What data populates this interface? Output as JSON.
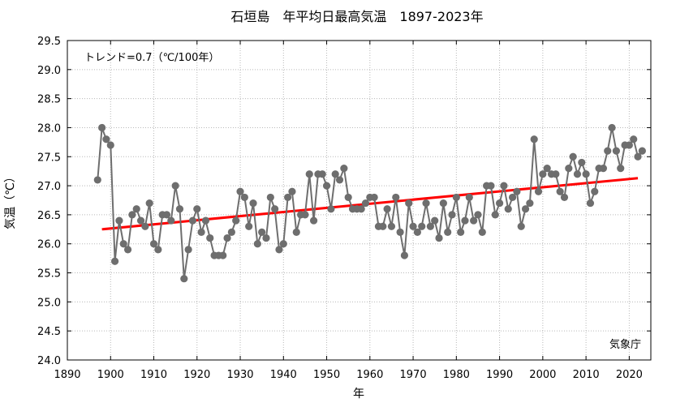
{
  "chart_data": {
    "type": "line",
    "title": "石垣島　年平均日最高気温　1897-2023年",
    "xlabel": "年",
    "ylabel": "気温（℃）",
    "xlim": [
      1890,
      2025
    ],
    "ylim": [
      24.0,
      29.5
    ],
    "xticks": [
      1890,
      1900,
      1910,
      1920,
      1930,
      1940,
      1950,
      1960,
      1970,
      1980,
      1990,
      2000,
      2010,
      2020
    ],
    "yticks": [
      "24.0",
      "24.5",
      "25.0",
      "25.5",
      "26.0",
      "26.5",
      "27.0",
      "27.5",
      "28.0",
      "28.5",
      "29.0",
      "29.5"
    ],
    "grid": true,
    "trend_label": "トレンド=0.7（℃/100年）",
    "source_label": "気象庁",
    "series": [
      {
        "color": "#6e6e6e",
        "x": [
          1897,
          1898,
          1899,
          1900,
          1901,
          1902,
          1903,
          1904,
          1905,
          1906,
          1907,
          1908,
          1909,
          1910,
          1911,
          1912,
          1913,
          1914,
          1915,
          1916,
          1917,
          1918,
          1919,
          1920,
          1921,
          1922,
          1923,
          1924,
          1925,
          1926,
          1927,
          1928,
          1929,
          1930,
          1931,
          1932,
          1933,
          1934,
          1935,
          1936,
          1937,
          1938,
          1939,
          1940,
          1941,
          1942,
          1943,
          1944,
          1945,
          1946,
          1947,
          1948,
          1949,
          1950,
          1951,
          1952,
          1953,
          1954,
          1955,
          1956,
          1957,
          1958,
          1959,
          1960,
          1961,
          1962,
          1963,
          1964,
          1965,
          1966,
          1967,
          1968,
          1969,
          1970,
          1971,
          1972,
          1973,
          1974,
          1975,
          1976,
          1977,
          1978,
          1979,
          1980,
          1981,
          1982,
          1983,
          1984,
          1985,
          1986,
          1987,
          1988,
          1989,
          1990,
          1991,
          1992,
          1993,
          1994,
          1995,
          1996,
          1997,
          1998,
          1999,
          2000,
          2001,
          2002,
          2003,
          2004,
          2005,
          2006,
          2007,
          2008,
          2009,
          2010,
          2011,
          2012,
          2013,
          2014,
          2015,
          2016,
          2017,
          2018,
          2019,
          2020,
          2021,
          2022,
          2023
        ],
        "y": [
          27.1,
          28.0,
          27.8,
          27.7,
          25.7,
          26.4,
          26.0,
          25.9,
          26.5,
          26.6,
          26.4,
          26.3,
          26.7,
          26.0,
          25.9,
          26.5,
          26.5,
          26.4,
          27.0,
          26.6,
          25.4,
          25.9,
          26.4,
          26.6,
          26.2,
          26.4,
          26.1,
          25.8,
          25.8,
          25.8,
          26.1,
          26.2,
          26.4,
          26.9,
          26.8,
          26.3,
          26.7,
          26.0,
          26.2,
          26.1,
          26.8,
          26.6,
          25.9,
          26.0,
          26.8,
          26.9,
          26.2,
          26.5,
          26.5,
          27.2,
          26.4,
          27.2,
          27.2,
          27.0,
          26.6,
          27.2,
          27.1,
          27.3,
          26.8,
          26.6,
          26.6,
          26.6,
          26.7,
          26.8,
          26.8,
          26.3,
          26.3,
          26.6,
          26.3,
          26.8,
          26.2,
          25.8,
          26.7,
          26.3,
          26.2,
          26.3,
          26.7,
          26.3,
          26.4,
          26.1,
          26.7,
          26.2,
          26.5,
          26.8,
          26.2,
          26.4,
          26.8,
          26.4,
          26.5,
          26.2,
          27.0,
          27.0,
          26.5,
          26.7,
          27.0,
          26.6,
          26.8,
          26.9,
          26.3,
          26.6,
          26.7,
          27.8,
          26.9,
          27.2,
          27.3,
          27.2,
          27.2,
          26.9,
          26.8,
          27.3,
          27.5,
          27.2,
          27.4,
          27.2,
          26.7,
          26.9,
          27.3,
          27.3,
          27.6,
          28.0,
          27.6,
          27.3,
          27.7,
          27.7,
          27.8,
          27.5,
          27.6
        ]
      }
    ],
    "trend": {
      "color": "#ff0000",
      "x": [
        1898,
        2022
      ],
      "y": [
        26.25,
        27.13
      ]
    }
  }
}
